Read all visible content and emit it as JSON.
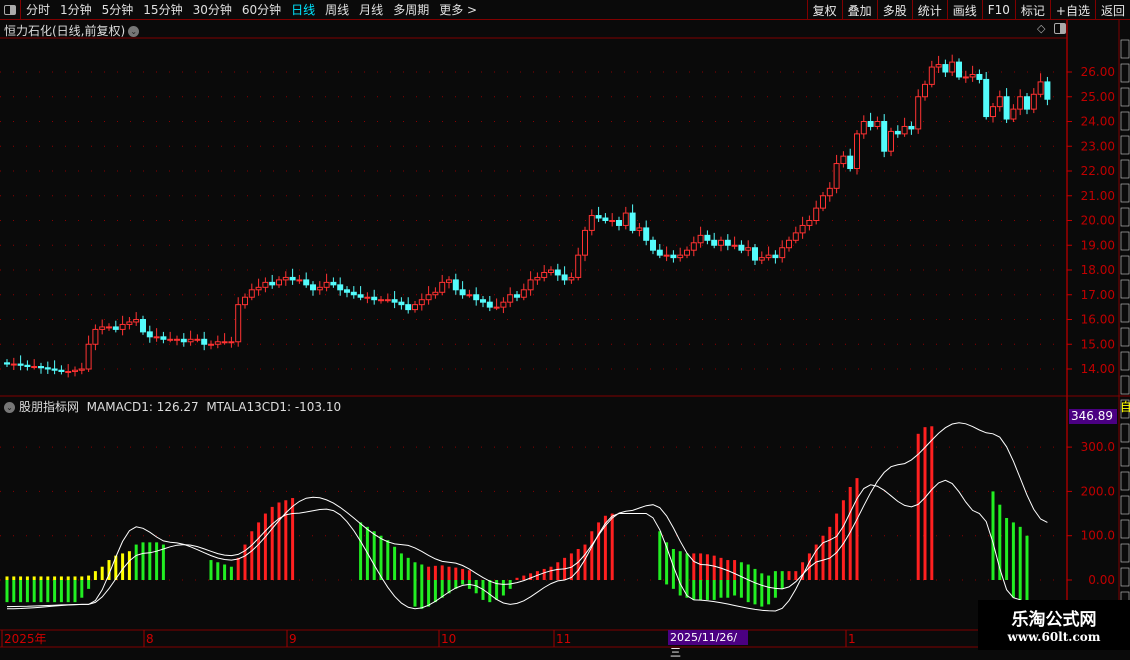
{
  "toolbar": {
    "periods": [
      "分时",
      "1分钟",
      "5分钟",
      "15分钟",
      "30分钟",
      "60分钟",
      "日线",
      "周线",
      "月线",
      "多周期",
      "更多 >"
    ],
    "active": "日线",
    "actions": [
      "复权",
      "叠加",
      "多股",
      "统计",
      "画线",
      "F10",
      "标记",
      "+自选",
      "返回"
    ]
  },
  "main_chart": {
    "title": "恒力石化(日线,前复权)",
    "y_ticks": [
      "26.00",
      "25.00",
      "24.00",
      "23.00",
      "22.00",
      "21.00",
      "20.00",
      "19.00",
      "18.00",
      "17.00",
      "16.00",
      "15.00",
      "14.00"
    ],
    "colors": {
      "up": "#ff3232",
      "down": "#54fcfc",
      "axis": "#c00000",
      "grid": "#8b0000"
    },
    "closes": [
      14.2,
      14.2,
      14.15,
      14.1,
      14.1,
      14.05,
      14.0,
      13.95,
      13.9,
      13.9,
      13.95,
      14.0,
      15.0,
      15.6,
      15.7,
      15.7,
      15.6,
      15.8,
      15.9,
      16.0,
      15.5,
      15.3,
      15.3,
      15.2,
      15.2,
      15.2,
      15.1,
      15.2,
      15.2,
      15.0,
      15.0,
      15.1,
      15.1,
      15.1,
      16.6,
      16.9,
      17.2,
      17.3,
      17.5,
      17.4,
      17.6,
      17.7,
      17.6,
      17.6,
      17.4,
      17.2,
      17.3,
      17.5,
      17.4,
      17.2,
      17.1,
      17.0,
      16.9,
      16.9,
      16.8,
      16.8,
      16.8,
      16.7,
      16.6,
      16.4,
      16.6,
      16.8,
      17.0,
      17.1,
      17.5,
      17.6,
      17.2,
      17.0,
      17.0,
      16.8,
      16.7,
      16.5,
      16.5,
      16.7,
      17.0,
      16.9,
      17.2,
      17.6,
      17.7,
      17.9,
      18.0,
      17.8,
      17.6,
      17.7,
      18.6,
      19.6,
      20.2,
      20.1,
      20.0,
      20.0,
      19.8,
      20.3,
      19.6,
      19.7,
      19.2,
      18.8,
      18.6,
      18.6,
      18.5,
      18.6,
      18.8,
      19.1,
      19.4,
      19.2,
      19.0,
      19.2,
      19.0,
      19.0,
      18.8,
      18.9,
      18.4,
      18.5,
      18.6,
      18.5,
      18.9,
      19.2,
      19.5,
      19.8,
      20.0,
      20.5,
      21.0,
      21.3,
      22.3,
      22.6,
      22.1,
      23.5,
      24.0,
      23.8,
      24.0,
      22.8,
      23.6,
      23.5,
      23.8,
      23.7,
      25.0,
      25.5,
      26.2,
      26.3,
      26.0,
      26.4,
      25.8,
      25.8,
      25.9,
      25.7,
      24.2,
      24.6,
      25.0,
      24.1,
      24.5,
      25.0,
      24.5,
      25.1,
      25.6,
      24.9
    ]
  },
  "sub_chart": {
    "name": "股朋指标网",
    "label1": "MAMACD1: 126.27",
    "label2": "MTALA13CD1: -103.10",
    "max_label": "346.89",
    "y_ticks": [
      "300.0",
      "200.0",
      "100.0",
      "0.00"
    ],
    "colors": {
      "yellow": "#ffff00",
      "green": "#22ee22",
      "red": "#ff2020",
      "line": "#ffffff"
    },
    "bars_pos": [
      8,
      8,
      8,
      8,
      8,
      8,
      8,
      8,
      8,
      8,
      8,
      8,
      10,
      20,
      30,
      45,
      55,
      60,
      65,
      80,
      85,
      85,
      85,
      80,
      0,
      0,
      0,
      0,
      0,
      0,
      45,
      40,
      35,
      30,
      50,
      80,
      110,
      130,
      150,
      165,
      175,
      180,
      185,
      0,
      0,
      0,
      0,
      0,
      0,
      0,
      0,
      0,
      130,
      120,
      110,
      100,
      90,
      75,
      60,
      50,
      40,
      35,
      30,
      32,
      33,
      30,
      28,
      25,
      22,
      0,
      0,
      0,
      0,
      0,
      0,
      5,
      10,
      15,
      20,
      25,
      30,
      40,
      50,
      60,
      70,
      80,
      110,
      130,
      145,
      150,
      0,
      0,
      0,
      0,
      0,
      0,
      110,
      85,
      70,
      65,
      60,
      60,
      60,
      58,
      55,
      50,
      45,
      45,
      40,
      35,
      25,
      15,
      10,
      20,
      20,
      20,
      20,
      40,
      60,
      80,
      100,
      120,
      150,
      180,
      210,
      230,
      0,
      0,
      0,
      0,
      0,
      0,
      280,
      310,
      330,
      345,
      347,
      0,
      0,
      0,
      0,
      0,
      0,
      260,
      235,
      200,
      170,
      140,
      130,
      120,
      100
    ],
    "bars_color": "yyyyyyyyyyyyyyyyyyyggggg......ggggrrrrrrrrr.........ggggggggggrrrrrrr......rrrrrrrrrrrrrrr......gggggrrrrrrrgggggggrrrrrrrrrrrrr......rrrrr......gggggggg",
    "bars_neg": [
      -50,
      -50,
      -50,
      -50,
      -50,
      -50,
      -50,
      -50,
      -50,
      -50,
      -50,
      -40,
      -20,
      0,
      0,
      0,
      0,
      0,
      0,
      0,
      0,
      0,
      0,
      0,
      0,
      0,
      0,
      0,
      0,
      0,
      0,
      0,
      0,
      0,
      0,
      0,
      0,
      0,
      0,
      0,
      0,
      0,
      0,
      0,
      0,
      0,
      0,
      0,
      0,
      0,
      0,
      0,
      0,
      0,
      0,
      0,
      0,
      0,
      0,
      0,
      -60,
      -65,
      -60,
      -50,
      -40,
      -30,
      -20,
      -10,
      -20,
      -30,
      -45,
      -50,
      -45,
      -35,
      -20,
      0,
      0,
      0,
      0,
      0,
      0,
      0,
      0,
      0,
      0,
      0,
      0,
      0,
      0,
      0,
      0,
      0,
      0,
      0,
      0,
      0,
      0,
      -10,
      -20,
      -35,
      -40,
      -45,
      -45,
      -45,
      -45,
      -40,
      -40,
      -35,
      -40,
      -50,
      -55,
      -60,
      -55,
      -40,
      -20,
      0,
      0,
      0,
      0,
      0,
      0,
      0,
      0,
      0,
      0,
      0,
      0,
      0,
      0,
      0,
      0,
      0,
      0,
      0,
      0,
      0,
      0,
      0,
      0,
      0,
      0,
      0,
      0,
      0,
      0,
      0,
      0,
      0,
      -40,
      -60,
      -70,
      -70,
      -60,
      -50,
      -40
    ],
    "line1": [
      [
        0,
        -60
      ],
      [
        12,
        -55
      ],
      [
        19,
        120
      ],
      [
        24,
        85
      ],
      [
        33,
        45
      ],
      [
        45,
        187
      ],
      [
        58,
        80
      ],
      [
        65,
        40
      ],
      [
        73,
        -10
      ],
      [
        82,
        25
      ],
      [
        91,
        155
      ],
      [
        95,
        170
      ],
      [
        102,
        35
      ],
      [
        114,
        -20
      ],
      [
        120,
        45
      ],
      [
        131,
        260
      ],
      [
        140,
        355
      ],
      [
        145,
        330
      ],
      [
        153,
        130
      ]
    ],
    "line2": [
      [
        0,
        -65
      ],
      [
        12,
        -55
      ],
      [
        20,
        60
      ],
      [
        26,
        80
      ],
      [
        33,
        55
      ],
      [
        42,
        150
      ],
      [
        47,
        160
      ],
      [
        60,
        -65
      ],
      [
        68,
        -10
      ],
      [
        74,
        -55
      ],
      [
        82,
        0
      ],
      [
        90,
        150
      ],
      [
        94,
        150
      ],
      [
        101,
        -45
      ],
      [
        113,
        -70
      ],
      [
        121,
        90
      ],
      [
        127,
        215
      ],
      [
        133,
        165
      ],
      [
        138,
        225
      ],
      [
        143,
        150
      ],
      [
        148,
        -40
      ],
      [
        153,
        -90
      ]
    ]
  },
  "time_axis": {
    "labels": [
      "2025年",
      "8",
      "9",
      "10",
      "11",
      "1"
    ],
    "cursor": "2025/11/26/三"
  },
  "right_strip": {
    "top_label": "自"
  },
  "watermark": {
    "name": "乐淘公式网",
    "url": "www.60lt.com"
  }
}
